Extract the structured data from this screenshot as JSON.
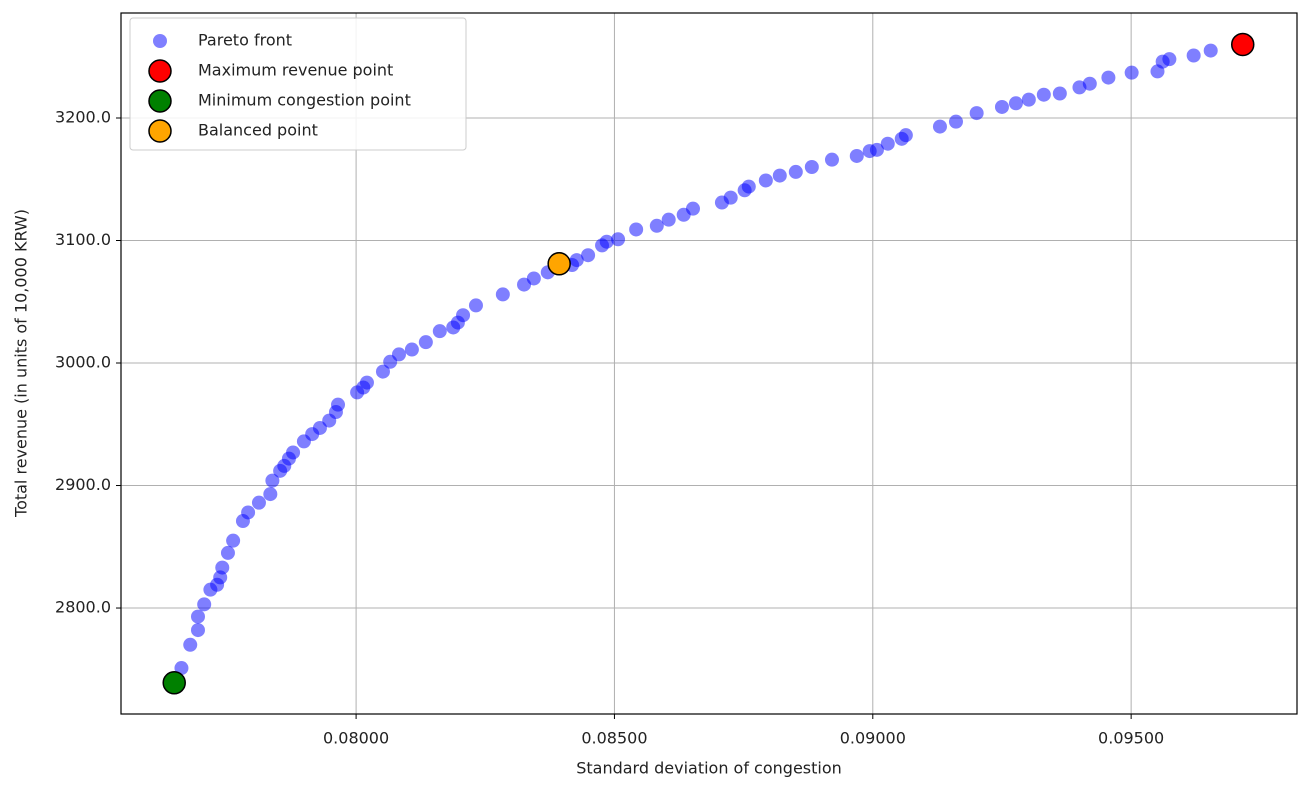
{
  "chart_data": {
    "type": "scatter",
    "xlabel": "Standard deviation of congestion",
    "ylabel": "Total revenue (in units of 10,000 KRW)",
    "xlim": [
      0.07545,
      0.09821
    ],
    "ylim": [
      2713.5,
      3285.7
    ],
    "xticks": [
      {
        "value": 0.08,
        "label": "0.08000"
      },
      {
        "value": 0.085,
        "label": "0.08500"
      },
      {
        "value": 0.09,
        "label": "0.09000"
      },
      {
        "value": 0.095,
        "label": "0.09500"
      }
    ],
    "yticks": [
      {
        "value": 2800,
        "label": "2800.0"
      },
      {
        "value": 2900,
        "label": "2900.0"
      },
      {
        "value": 3000,
        "label": "3000.0"
      },
      {
        "value": 3100,
        "label": "3100.0"
      },
      {
        "value": 3200,
        "label": "3200.0"
      }
    ],
    "grid": true,
    "legend": "upper-left",
    "series": [
      {
        "name": "Pareto front",
        "color": "#0000ff",
        "alpha": 0.5,
        "x": [
          0.07662,
          0.07679,
          0.07694,
          0.07694,
          0.07706,
          0.07718,
          0.07731,
          0.07737,
          0.07741,
          0.07752,
          0.07762,
          0.07781,
          0.07791,
          0.07812,
          0.07834,
          0.07838,
          0.07853,
          0.07861,
          0.0787,
          0.07878,
          0.07899,
          0.07915,
          0.0793,
          0.07948,
          0.07961,
          0.07965,
          0.08002,
          0.08014,
          0.08021,
          0.08052,
          0.08066,
          0.08083,
          0.08108,
          0.08135,
          0.08162,
          0.08188,
          0.08197,
          0.08207,
          0.08232,
          0.08284,
          0.08325,
          0.08344,
          0.08371,
          0.08418,
          0.08427,
          0.08449,
          0.08476,
          0.08485,
          0.08507,
          0.08542,
          0.08582,
          0.08605,
          0.08634,
          0.08652,
          0.08708,
          0.08725,
          0.08752,
          0.0876,
          0.08793,
          0.0882,
          0.08851,
          0.08882,
          0.08921,
          0.08969,
          0.08994,
          0.09008,
          0.09029,
          0.09056,
          0.09064,
          0.0913,
          0.09161,
          0.09201,
          0.0925,
          0.09277,
          0.09302,
          0.09331,
          0.09362,
          0.094,
          0.0942,
          0.09456,
          0.09501,
          0.09551,
          0.09561,
          0.09574,
          0.09621,
          0.09654
        ],
        "values": [
          2751,
          2770,
          2793,
          2782,
          2803,
          2815,
          2819,
          2825,
          2833,
          2845,
          2855,
          2871,
          2878,
          2886,
          2893,
          2904,
          2912,
          2916,
          2922,
          2927,
          2936,
          2942,
          2947,
          2953,
          2960,
          2966,
          2976,
          2980,
          2984,
          2993,
          3001,
          3007,
          3011,
          3017,
          3026,
          3029,
          3033,
          3039,
          3047,
          3056,
          3064,
          3069,
          3074,
          3080,
          3084,
          3088,
          3096,
          3099,
          3101,
          3109,
          3112,
          3117,
          3121,
          3126,
          3131,
          3135,
          3141,
          3144,
          3149,
          3153,
          3156,
          3160,
          3166,
          3169,
          3173,
          3174,
          3179,
          3183,
          3186,
          3193,
          3197,
          3204,
          3209,
          3212,
          3215,
          3219,
          3220,
          3225,
          3228,
          3233,
          3237,
          3238,
          3246,
          3248,
          3251,
          3255
        ]
      },
      {
        "name": "Maximum revenue point",
        "color": "#ff0000",
        "edgecolor": "#000000",
        "x": [
          0.09716
        ],
        "values": [
          3260
        ]
      },
      {
        "name": "Minimum congestion point",
        "color": "#008000",
        "edgecolor": "#000000",
        "x": [
          0.07648
        ],
        "values": [
          2739
        ]
      },
      {
        "name": "Balanced point",
        "color": "#ffa500",
        "edgecolor": "#000000",
        "x": [
          0.08393
        ],
        "values": [
          3081
        ]
      }
    ]
  }
}
